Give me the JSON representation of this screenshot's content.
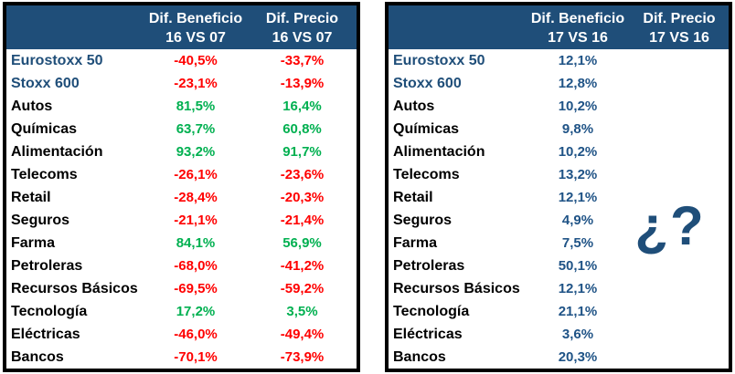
{
  "colors": {
    "header_bg": "#1F4E79",
    "header_text": "#FFFFFF",
    "negative_red": "#FF0000",
    "positive_green": "#00B050",
    "value_blue": "#1F5386",
    "index_label_blue": "#1F4E79",
    "table_border": "#000000"
  },
  "chart_data": [
    {
      "type": "table",
      "name": "dif-beneficio-precio-16-vs-07",
      "value_style": "sign",
      "headers": [
        {
          "title": "Dif. Beneficio",
          "sub": "16 VS 07"
        },
        {
          "title": "Dif. Precio",
          "sub": "16 VS 07"
        }
      ],
      "rows": [
        {
          "label": "Eurostoxx 50",
          "index": true,
          "values": [
            "-40,5%",
            "-33,7%"
          ]
        },
        {
          "label": "Stoxx 600",
          "index": true,
          "values": [
            "-23,1%",
            "-13,9%"
          ]
        },
        {
          "label": "Autos",
          "index": false,
          "values": [
            "81,5%",
            "16,4%"
          ]
        },
        {
          "label": "Químicas",
          "index": false,
          "values": [
            "63,7%",
            "60,8%"
          ]
        },
        {
          "label": "Alimentación",
          "index": false,
          "values": [
            "93,2%",
            "91,7%"
          ]
        },
        {
          "label": "Telecoms",
          "index": false,
          "values": [
            "-26,1%",
            "-23,6%"
          ]
        },
        {
          "label": "Retail",
          "index": false,
          "values": [
            "-28,4%",
            "-20,3%"
          ]
        },
        {
          "label": "Seguros",
          "index": false,
          "values": [
            "-21,1%",
            "-21,4%"
          ]
        },
        {
          "label": "Farma",
          "index": false,
          "values": [
            "84,1%",
            "56,9%"
          ]
        },
        {
          "label": "Petroleras",
          "index": false,
          "values": [
            "-68,0%",
            "-41,2%"
          ]
        },
        {
          "label": "Recursos Básicos",
          "index": false,
          "values": [
            "-69,5%",
            "-59,2%"
          ]
        },
        {
          "label": "Tecnología",
          "index": false,
          "values": [
            "17,2%",
            "3,5%"
          ]
        },
        {
          "label": "Eléctricas",
          "index": false,
          "values": [
            "-46,0%",
            "-49,4%"
          ]
        },
        {
          "label": "Bancos",
          "index": false,
          "values": [
            "-70,1%",
            "-73,9%"
          ]
        }
      ]
    },
    {
      "type": "table",
      "name": "dif-beneficio-precio-17-vs-16",
      "value_style": "blue",
      "annotation": "¿?",
      "headers": [
        {
          "title": "Dif. Beneficio",
          "sub": "17 VS 16"
        },
        {
          "title": "Dif. Precio",
          "sub": "17 VS 16"
        }
      ],
      "rows": [
        {
          "label": "Eurostoxx 50",
          "index": true,
          "values": [
            "12,1%",
            ""
          ]
        },
        {
          "label": "Stoxx 600",
          "index": true,
          "values": [
            "12,8%",
            ""
          ]
        },
        {
          "label": "Autos",
          "index": false,
          "values": [
            "10,2%",
            ""
          ]
        },
        {
          "label": "Químicas",
          "index": false,
          "values": [
            "9,8%",
            ""
          ]
        },
        {
          "label": "Alimentación",
          "index": false,
          "values": [
            "10,2%",
            ""
          ]
        },
        {
          "label": "Telecoms",
          "index": false,
          "values": [
            "13,2%",
            ""
          ]
        },
        {
          "label": "Retail",
          "index": false,
          "values": [
            "12,1%",
            ""
          ]
        },
        {
          "label": "Seguros",
          "index": false,
          "values": [
            "4,9%",
            ""
          ]
        },
        {
          "label": "Farma",
          "index": false,
          "values": [
            "7,5%",
            ""
          ]
        },
        {
          "label": "Petroleras",
          "index": false,
          "values": [
            "50,1%",
            ""
          ]
        },
        {
          "label": "Recursos Básicos",
          "index": false,
          "values": [
            "12,1%",
            ""
          ]
        },
        {
          "label": "Tecnología",
          "index": false,
          "values": [
            "21,1%",
            ""
          ]
        },
        {
          "label": "Eléctricas",
          "index": false,
          "values": [
            "3,6%",
            ""
          ]
        },
        {
          "label": "Bancos",
          "index": false,
          "values": [
            "20,3%",
            ""
          ]
        }
      ]
    }
  ]
}
